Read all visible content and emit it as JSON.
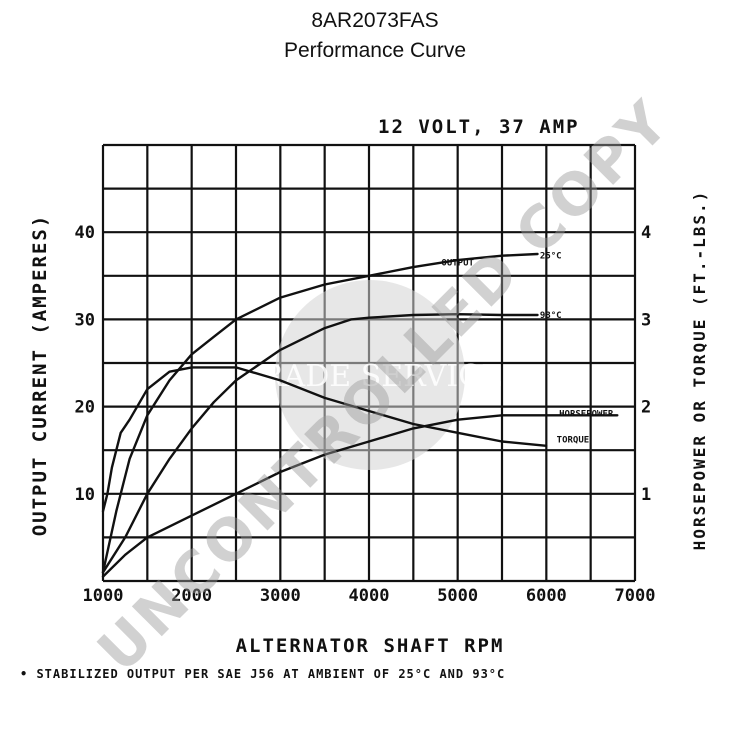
{
  "header": {
    "part_number": "8AR2073FAS",
    "subtitle": "Performance Curve"
  },
  "chart_data": {
    "type": "line",
    "title": "12 VOLT, 37 AMP",
    "xlabel": "ALTERNATOR SHAFT RPM",
    "ylabel_left": "OUTPUT CURRENT (AMPERES)",
    "ylabel_right": "HORSEPOWER OR TORQUE (FT.-LBS.)",
    "xlim": [
      1000,
      7000
    ],
    "ylim_left": [
      0,
      50
    ],
    "ylim_right": [
      0,
      5
    ],
    "x_ticks": [
      "1000",
      "2000",
      "3000",
      "4000",
      "5000",
      "6000",
      "7000"
    ],
    "y_ticks_left": [
      "10",
      "20",
      "30",
      "40"
    ],
    "y_ticks_right": [
      "1",
      "2",
      "3",
      "4"
    ],
    "grid": true,
    "footnote": "• STABILIZED OUTPUT PER SAE J56 AT AMBIENT OF 25°C AND 93°C",
    "series": [
      {
        "name": "OUTPUT 25°C",
        "axis": "left",
        "x": [
          1000,
          1150,
          1300,
          1500,
          1750,
          2000,
          2250,
          2500,
          3000,
          3500,
          4000,
          4500,
          5000,
          5500,
          5900
        ],
        "y": [
          1,
          8,
          14,
          19,
          23,
          26,
          28,
          30,
          32.5,
          34,
          35,
          36,
          36.8,
          37.3,
          37.5
        ]
      },
      {
        "name": "93°C",
        "axis": "left",
        "x": [
          1000,
          1250,
          1500,
          1750,
          2000,
          2250,
          2500,
          3000,
          3500,
          3800,
          4000,
          4500,
          5000,
          5500,
          5900
        ],
        "y": [
          1,
          5,
          10,
          14,
          17.5,
          20.5,
          23,
          26.5,
          29,
          30,
          30.2,
          30.5,
          30.6,
          30.5,
          30.5
        ]
      },
      {
        "name": "HORSEPOWER",
        "axis": "right",
        "x": [
          1000,
          1250,
          1500,
          2000,
          2500,
          3000,
          3500,
          4000,
          4500,
          5000,
          5500,
          6000,
          6800
        ],
        "y": [
          0.05,
          0.3,
          0.5,
          0.75,
          1.0,
          1.25,
          1.45,
          1.6,
          1.75,
          1.85,
          1.9,
          1.9,
          1.9
        ]
      },
      {
        "name": "TORQUE",
        "axis": "right",
        "x": [
          1000,
          1050,
          1100,
          1200,
          1300,
          1500,
          1750,
          2000,
          2500,
          3000,
          3500,
          4000,
          4500,
          5000,
          5500,
          6000
        ],
        "y": [
          0.8,
          1.0,
          1.3,
          1.7,
          1.85,
          2.2,
          2.4,
          2.45,
          2.45,
          2.3,
          2.1,
          1.95,
          1.8,
          1.7,
          1.6,
          1.55
        ]
      }
    ],
    "curve_labels": [
      {
        "text": "OUTPUT",
        "x": 5000,
        "y": 36.5
      },
      {
        "text": "25°C",
        "x": 6050,
        "y": 37.3
      },
      {
        "text": "93°C",
        "x": 6050,
        "y": 30.5
      },
      {
        "text": "HORSEPOWER",
        "x": 6450,
        "y": 19.2
      },
      {
        "text": "TORQUE",
        "x": 6300,
        "y": 16.2
      }
    ]
  },
  "watermark": {
    "text": "UNCONTROLLED COPY",
    "logo_text": "TRADE SERVICE"
  }
}
